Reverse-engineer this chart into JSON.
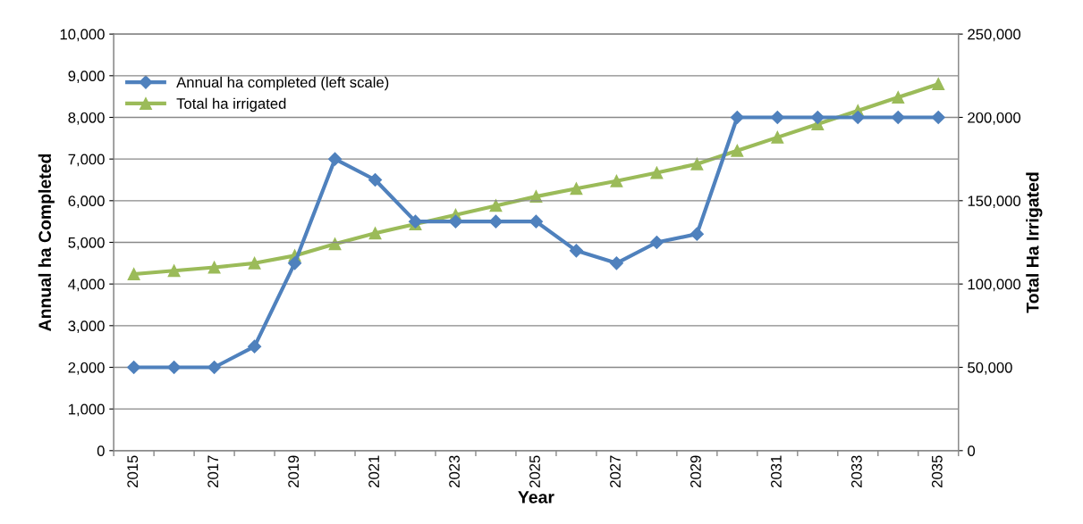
{
  "chart_data": {
    "type": "line",
    "xlabel": "Year",
    "ylabel": "Annual ha Completed",
    "y2label": "Total Ha Irrigated",
    "categories": [
      "2015",
      null,
      "2017",
      null,
      "2019",
      null,
      "2021",
      null,
      "2023",
      null,
      "2025",
      null,
      "2027",
      null,
      "2029",
      null,
      "2031",
      null,
      "2033",
      null,
      "2035"
    ],
    "series": [
      {
        "name": "Annual ha completed (left scale)",
        "color": "#4f81bd",
        "marker": "diamond",
        "values": [
          2000,
          2000,
          2000,
          2500,
          4500,
          7000,
          6500,
          5500,
          5500,
          5500,
          5500,
          4800,
          4500,
          5000,
          5200,
          8000,
          8000,
          8000,
          8000,
          8000,
          8000
        ]
      },
      {
        "name": "Total ha irrigated",
        "color": "#9bbb59",
        "marker": "triangle",
        "axis": "y2",
        "values": [
          106000,
          108000,
          110000,
          112500,
          117000,
          124000,
          130500,
          136000,
          141500,
          147000,
          152500,
          157300,
          161800,
          166800,
          172000,
          180000,
          188000,
          196000,
          204000,
          212000,
          220000
        ]
      }
    ],
    "ylim": [
      0,
      10000
    ],
    "yticks": [
      0,
      {
        "value": 1000,
        "label": "1,000"
      },
      {
        "value": 2000,
        "label": "2,000"
      },
      {
        "value": 3000,
        "label": "3,000"
      },
      {
        "value": 4000,
        "label": "4,000"
      },
      {
        "value": 5000,
        "label": "5,000"
      },
      {
        "value": 6000,
        "label": "6,000"
      },
      {
        "value": 7000,
        "label": "7,000"
      },
      {
        "value": 8000,
        "label": "8,000"
      },
      {
        "value": 9000,
        "label": "9,000"
      },
      {
        "value": 10000,
        "label": "10,000"
      }
    ],
    "y2lim": [
      0,
      250000
    ],
    "y2ticks": [
      0,
      {
        "value": 50000,
        "label": "50,000"
      },
      {
        "value": 100000,
        "label": "100,000"
      },
      {
        "value": 150000,
        "label": "150,000"
      },
      {
        "value": 200000,
        "label": "200,000"
      },
      {
        "value": 250000,
        "label": "250,000"
      }
    ],
    "grid": "y",
    "legend": "top left",
    "line_style": "solid"
  }
}
